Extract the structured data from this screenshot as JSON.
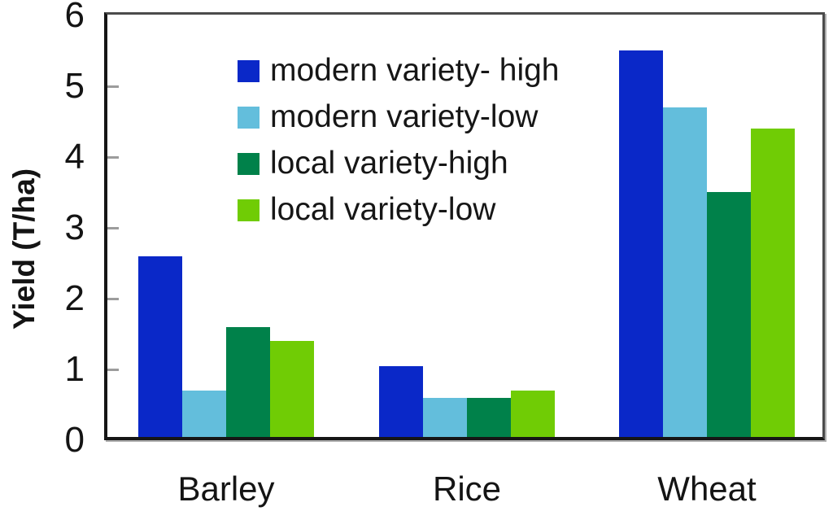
{
  "chart_data": {
    "type": "bar",
    "title": "",
    "xlabel": "",
    "ylabel": "Yield (T/ha)",
    "ylim": [
      0,
      6
    ],
    "ytick_labels": [
      "0",
      "1",
      "2",
      "3",
      "4",
      "5",
      "6"
    ],
    "yticks": [
      0,
      1,
      2,
      3,
      4,
      5,
      6
    ],
    "grid": false,
    "legend_position": "upper-left-inside",
    "categories": [
      "Barley",
      "Rice",
      "Wheat"
    ],
    "series": [
      {
        "name": "modern variety- high",
        "color": "#0A28C8",
        "values": [
          2.6,
          1.05,
          5.5
        ]
      },
      {
        "name": "modern variety-low",
        "color": "#63BEDC",
        "values": [
          0.7,
          0.6,
          4.7
        ]
      },
      {
        "name": "local variety-high",
        "color": "#00814A",
        "values": [
          1.6,
          0.6,
          3.5
        ]
      },
      {
        "name": "local variety-low",
        "color": "#70CC05",
        "values": [
          1.4,
          0.7,
          4.4
        ]
      }
    ],
    "colors": {
      "axis": "#161616",
      "frame": "#4b4b4b",
      "tick_mark": "#9c9c9c",
      "text": "#141414"
    }
  }
}
